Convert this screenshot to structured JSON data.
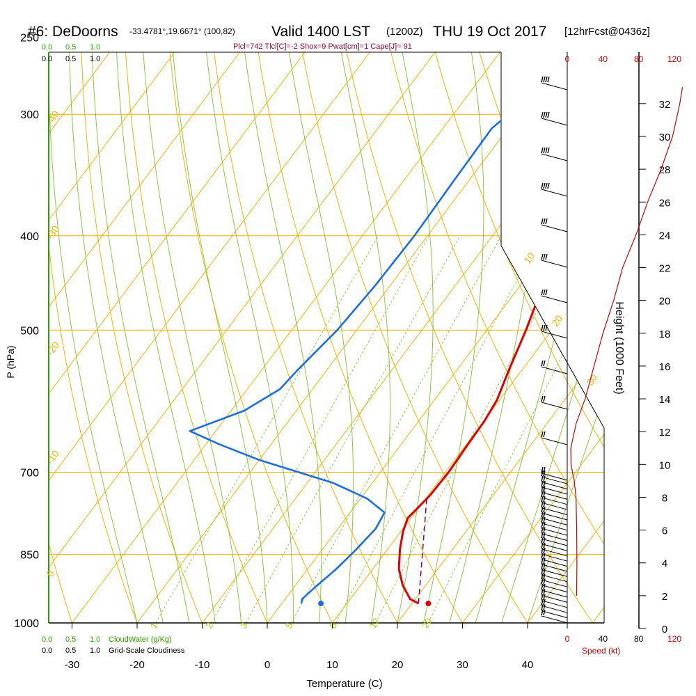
{
  "header": {
    "station": "#6: DeDoorns",
    "coords": "-33.4781°,19.6671° (100,82)",
    "valid": "Valid 1400 LST",
    "zulu": "(1200Z)",
    "date": "THU 19 Oct 2017",
    "forecast": "[12hrFcst@0436z]",
    "indices": "Plcl=742 Tlcl[C]=-2 Shox=9 Pwat[cm]=1 Cape[J]= 91"
  },
  "colors": {
    "temperature": "#e00000",
    "dewpoint": "#1a6fe0",
    "isotherm": "#f0b400",
    "dry_adiabat": "#f0b400",
    "moist_adiabat": "#8cc63f",
    "mixing_ratio": "#8cc63f",
    "parcel": "#800060",
    "cloudwater": "#2aa000",
    "wind_speed": "#cc0000",
    "indices": "#990033"
  },
  "scale_labels": {
    "cloudwater_ticks": [
      "0.0",
      "0.5",
      "1.0"
    ],
    "cloudiness_ticks": [
      "0.0",
      "0.5",
      "1.0"
    ],
    "cloudwater_label": "CloudWater (g/Kg)",
    "cloudiness_label": "Grid-Scale Cloudiness",
    "speed_ticks": [
      "0",
      "40",
      "80",
      "120"
    ],
    "speed_label": "Speed (kt)"
  },
  "chart_data": {
    "type": "line",
    "title": "#6: DeDoorns -33.4781°,19.6671° (100,82) Valid 1400 LST (1200Z) THU 19 Oct 2017 [12hrFcst@0436z]",
    "xlabel": "Temperature (C)",
    "ylabel": "P (hPa)",
    "y2label": "Height (1000 Feet)",
    "x_ticks": [
      -30,
      -20,
      -10,
      0,
      10,
      20,
      30,
      40
    ],
    "p_ticks": [
      250,
      300,
      400,
      500,
      700,
      850,
      1000
    ],
    "height_ticks": [
      0,
      2,
      4,
      6,
      8,
      10,
      12,
      14,
      16,
      18,
      20,
      22,
      24,
      26,
      28,
      30,
      32
    ],
    "xlim": [
      -34,
      45
    ],
    "ylim": [
      1000,
      250
    ],
    "y_scale": "log",
    "grid": true,
    "series": [
      {
        "key": "temperature",
        "points": [
          [
            21.0,
            955
          ],
          [
            19.2,
            945
          ],
          [
            16.5,
            915
          ],
          [
            14.0,
            880
          ],
          [
            11.9,
            840
          ],
          [
            10.3,
            805
          ],
          [
            9.5,
            780
          ],
          [
            9.8,
            765
          ],
          [
            10.3,
            740
          ],
          [
            10.5,
            700
          ],
          [
            10.3,
            665
          ],
          [
            10.1,
            620
          ],
          [
            9.6,
            590
          ],
          [
            8.0,
            550
          ],
          [
            6.0,
            500
          ],
          [
            3.5,
            450
          ],
          [
            1.0,
            400
          ],
          [
            -1.0,
            355
          ],
          [
            -3.0,
            320
          ],
          [
            -5.0,
            290
          ],
          [
            -7.0,
            265
          ],
          [
            -8.4,
            255
          ]
        ]
      },
      {
        "key": "dewpoint",
        "points": [
          [
            3.0,
            955
          ],
          [
            2.6,
            945
          ],
          [
            3.2,
            920
          ],
          [
            4.4,
            880
          ],
          [
            5.2,
            840
          ],
          [
            5.8,
            800
          ],
          [
            5.3,
            770
          ],
          [
            1.0,
            745
          ],
          [
            -6.0,
            718
          ],
          [
            -20.0,
            680
          ],
          [
            -28.0,
            655
          ],
          [
            -34.0,
            635
          ],
          [
            -28.0,
            605
          ],
          [
            -25.0,
            575
          ],
          [
            -24.5,
            550
          ],
          [
            -23.0,
            500
          ],
          [
            -22.3,
            450
          ],
          [
            -22.0,
            400
          ],
          [
            -22.3,
            350
          ],
          [
            -22.5,
            310
          ],
          [
            -20.5,
            290
          ],
          [
            -17.0,
            265
          ],
          [
            -15.5,
            255
          ]
        ]
      },
      {
        "key": "parcel",
        "points": [
          [
            21.0,
            955
          ],
          [
            10.0,
            742
          ]
        ]
      }
    ],
    "surface_points": [
      {
        "key": "temperature",
        "temp_c": 22.5,
        "p": 955
      },
      {
        "key": "dewpoint",
        "temp_c": 6.0,
        "p": 955
      }
    ],
    "isotherm_labels": [
      -40,
      -30,
      -20,
      -10,
      0,
      10,
      20,
      30
    ],
    "mixing_ratio_labels": [
      1,
      2,
      3,
      5,
      8,
      12,
      20
    ],
    "wind_speed_profile": [
      [
        10.5,
        2.0
      ],
      [
        10.8,
        4.0
      ],
      [
        10.6,
        6.0
      ],
      [
        10.2,
        7.0
      ],
      [
        9.8,
        8.0
      ],
      [
        7.8,
        9.0
      ],
      [
        4.2,
        10.0
      ],
      [
        4.0,
        11.0
      ],
      [
        10.0,
        12.5
      ],
      [
        20.0,
        14.0
      ],
      [
        30.0,
        16.0
      ],
      [
        40.0,
        18.0
      ],
      [
        52.0,
        20.0
      ],
      [
        62.0,
        22.0
      ],
      [
        77.0,
        24.0
      ],
      [
        90.0,
        26.0
      ],
      [
        105.0,
        28.0
      ],
      [
        118.0,
        30.0
      ],
      [
        126.0,
        32.0
      ],
      [
        129.0,
        33.0
      ]
    ],
    "wind_barb_count": 40
  }
}
